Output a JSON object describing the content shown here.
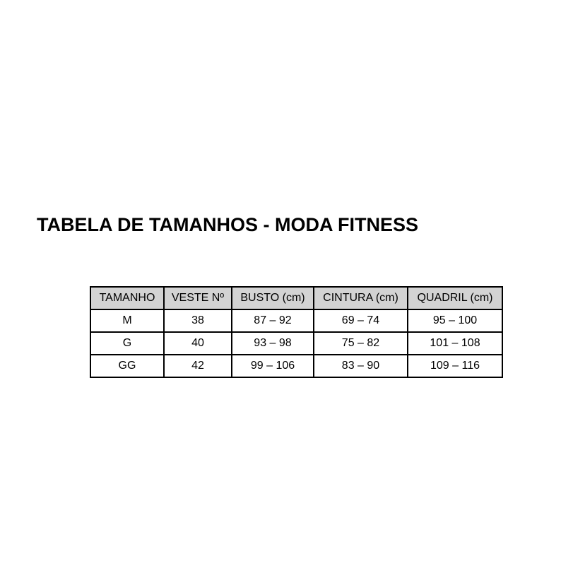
{
  "page": {
    "background": "#ffffff"
  },
  "title": "TABELA DE TAMANHOS - MODA FITNESS",
  "table": {
    "header_bg": "#d3d3d3",
    "border_color": "#000000",
    "columns": [
      "TAMANHO",
      "VESTE Nº",
      "BUSTO (cm)",
      "CINTURA (cm)",
      "QUADRIL (cm)"
    ],
    "rows": [
      [
        "M",
        "38",
        "87 – 92",
        "69 – 74",
        "95 – 100"
      ],
      [
        "G",
        "40",
        "93 – 98",
        "75 – 82",
        "101 – 108"
      ],
      [
        "GG",
        "42",
        "99 – 106",
        "83 – 90",
        "109 – 116"
      ]
    ]
  }
}
